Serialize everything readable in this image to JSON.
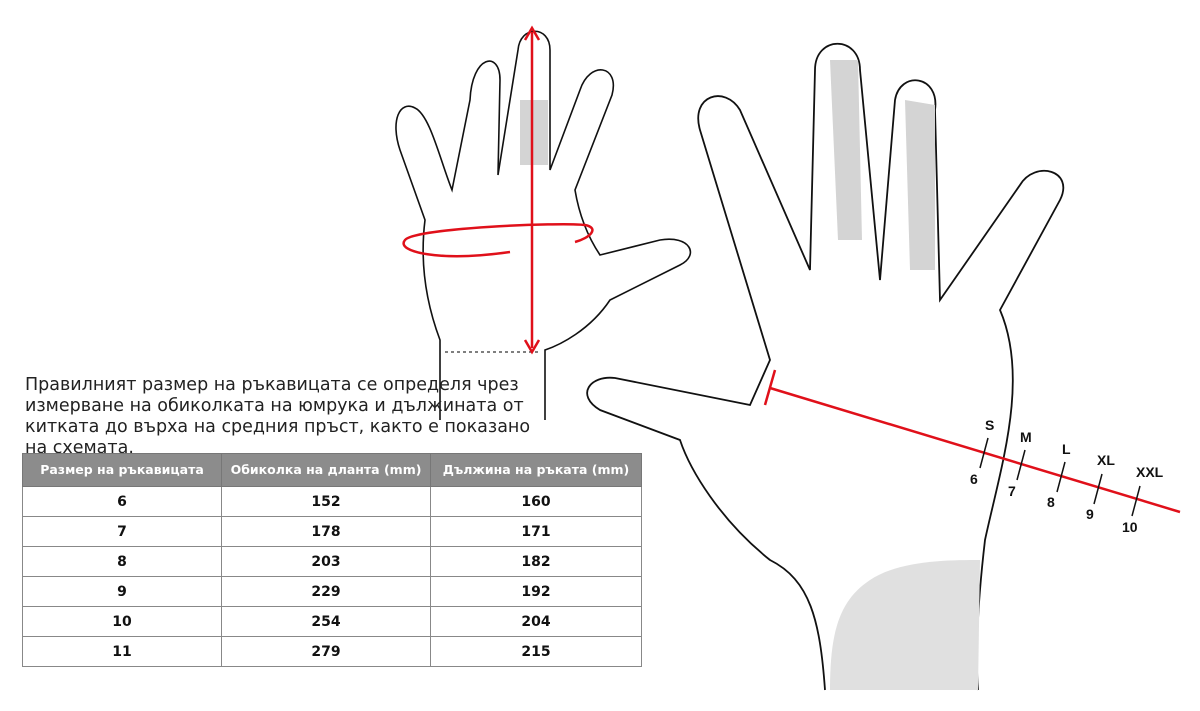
{
  "description": "Правилният размер на ръкавицата се определя чрез измерване на обиколката на юмрука и дължината от китката до върха на средния пръст, както е показано на схемата.",
  "table": {
    "headers": [
      "Размер на ръкавицата",
      "Обиколка на дланта (mm)",
      "Дължина на ръката (mm)"
    ],
    "rows": [
      [
        "6",
        "152",
        "160"
      ],
      [
        "7",
        "178",
        "171"
      ],
      [
        "8",
        "203",
        "182"
      ],
      [
        "9",
        "229",
        "192"
      ],
      [
        "10",
        "254",
        "204"
      ],
      [
        "11",
        "279",
        "215"
      ]
    ]
  },
  "scale": {
    "letters": [
      "S",
      "M",
      "L",
      "XL",
      "XXL"
    ],
    "numbers": [
      "6",
      "7",
      "8",
      "9",
      "10"
    ]
  },
  "colors": {
    "measure_line": "#e0101a",
    "header_bg": "#8c8c8c",
    "shadow": "#d4d4d4"
  }
}
